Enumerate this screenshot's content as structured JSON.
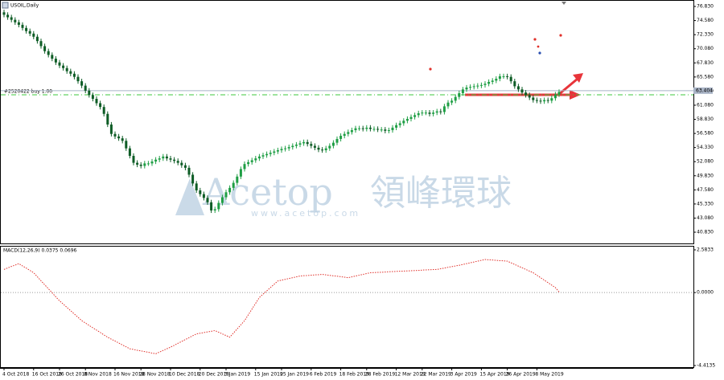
{
  "window_title": "USOIL,Daily",
  "watermark": {
    "brand": "Acetop",
    "name_cn": "領峰環球",
    "url": "www.acetop.com"
  },
  "chart_data": [
    {
      "type": "candlestick",
      "categories": [
        "4 Oct 2018",
        null,
        null,
        null,
        null,
        null,
        null,
        null,
        "16 Oct 2018",
        null,
        null,
        null,
        null,
        null,
        null,
        "26 Oct 2018",
        null,
        null,
        null,
        null,
        null,
        null,
        "8 Nov 2018",
        null,
        null,
        null,
        null,
        null,
        null,
        null,
        "16 Nov 2018",
        null,
        null,
        null,
        null,
        null,
        null,
        "28 Nov 2018",
        null,
        null,
        null,
        null,
        null,
        null,
        null,
        "10 Dec 2018",
        null,
        null,
        null,
        null,
        null,
        null,
        null,
        "20 Dec 2018",
        null,
        null,
        null,
        null,
        null,
        null,
        "3 Jan 2019",
        null,
        null,
        null,
        null,
        null,
        null,
        null,
        "15 Jan 2019",
        null,
        null,
        null,
        null,
        null,
        null,
        "25 Jan 2019",
        null,
        null,
        null,
        null,
        null,
        null,
        null,
        "6 Feb 2019",
        null,
        null,
        null,
        null,
        null,
        null,
        null,
        "18 Feb 2019",
        null,
        null,
        null,
        null,
        null,
        null,
        "28 Feb 2019",
        null,
        null,
        null,
        null,
        null,
        null,
        null,
        "12 Mar 2019",
        null,
        null,
        null,
        null,
        null,
        null,
        "22 Mar 2019",
        null,
        null,
        null,
        null,
        null,
        null,
        null,
        "3 Apr 2019",
        null,
        null,
        null,
        null,
        null,
        null,
        null,
        "15 Apr 2019",
        null,
        null,
        null,
        null,
        null,
        null,
        "26 Apr 2019",
        null,
        null,
        null,
        null,
        null,
        null,
        null,
        "8 May 2019",
        null,
        null,
        null,
        null,
        null,
        null
      ],
      "open": [
        75.9,
        75.5,
        75.1,
        74.7,
        74.3,
        73.9,
        73.4,
        72.9,
        72.5,
        72.0,
        71.3,
        70.5,
        69.7,
        69.1,
        68.5,
        67.9,
        67.4,
        67.0,
        66.5,
        66.1,
        65.6,
        64.9,
        64.2,
        63.4,
        62.7,
        62.1,
        61.4,
        60.8,
        59.7,
        58.0,
        56.5,
        56.1,
        55.8,
        55.4,
        54.2,
        53.0,
        51.9,
        51.6,
        51.4,
        51.8,
        51.8,
        52.1,
        52.4,
        52.6,
        52.9,
        52.6,
        52.4,
        52.2,
        51.9,
        51.5,
        51.1,
        50.0,
        48.6,
        47.5,
        46.9,
        46.3,
        45.6,
        44.3,
        44.5,
        45.5,
        46.4,
        47.2,
        47.9,
        48.7,
        49.7,
        50.9,
        51.7,
        52.0,
        52.3,
        52.6,
        52.9,
        53.1,
        53.3,
        53.5,
        53.7,
        53.9,
        54.1,
        54.2,
        54.4,
        54.6,
        54.8,
        55.0,
        55.2,
        54.9,
        54.6,
        54.3,
        54.0,
        53.9,
        54.2,
        54.6,
        55.1,
        55.7,
        56.2,
        56.5,
        56.8,
        57.1,
        57.4,
        57.4,
        57.3,
        57.5,
        57.3,
        57.3,
        57.2,
        57.2,
        57.0,
        57.1,
        57.5,
        57.9,
        58.2,
        58.6,
        58.9,
        59.2,
        59.5,
        59.8,
        59.9,
        59.9,
        59.7,
        59.9,
        60.1,
        60.0,
        60.9,
        61.5,
        61.8,
        62.4,
        63.0,
        63.6,
        63.9,
        64.0,
        64.1,
        64.2,
        64.3,
        64.5,
        64.8,
        65.0,
        65.3,
        65.7,
        65.7,
        65.6,
        64.9,
        64.1,
        63.6,
        63.1,
        62.7,
        62.3,
        61.9,
        61.8,
        61.7,
        61.9,
        61.8,
        62.2,
        62.8
      ],
      "high": [
        76.3,
        75.9,
        75.5,
        75.1,
        74.7,
        74.3,
        73.8,
        73.3,
        72.9,
        72.4,
        71.7,
        70.9,
        70.1,
        69.5,
        68.9,
        68.3,
        67.8,
        67.4,
        66.9,
        66.5,
        66.0,
        65.3,
        64.6,
        63.8,
        63.1,
        62.5,
        61.8,
        61.2,
        60.1,
        58.4,
        56.9,
        56.5,
        56.2,
        55.8,
        54.6,
        53.4,
        52.3,
        52.0,
        52.2,
        52.2,
        52.5,
        52.8,
        53.0,
        53.3,
        53.3,
        53.0,
        52.8,
        52.6,
        52.3,
        51.9,
        51.5,
        50.4,
        49.0,
        47.9,
        47.3,
        46.7,
        46.0,
        44.9,
        45.9,
        46.8,
        47.6,
        48.3,
        49.1,
        50.1,
        51.3,
        52.1,
        52.4,
        52.7,
        53.0,
        53.3,
        53.5,
        53.7,
        53.9,
        54.1,
        54.3,
        54.5,
        54.6,
        54.8,
        55.0,
        55.2,
        55.4,
        55.6,
        55.6,
        55.3,
        55.0,
        54.7,
        54.4,
        54.6,
        55.0,
        55.5,
        56.1,
        56.6,
        56.9,
        57.2,
        57.5,
        57.8,
        57.8,
        57.8,
        57.9,
        57.9,
        57.7,
        57.7,
        57.6,
        57.6,
        57.5,
        57.9,
        58.3,
        58.6,
        59.0,
        59.3,
        59.6,
        59.9,
        60.2,
        60.3,
        60.3,
        60.3,
        60.3,
        60.5,
        60.5,
        61.3,
        61.9,
        62.2,
        62.8,
        63.4,
        64.0,
        64.3,
        64.4,
        64.5,
        64.6,
        64.7,
        64.9,
        65.2,
        65.4,
        65.7,
        66.1,
        66.1,
        66.1,
        66.0,
        65.3,
        64.5,
        64.0,
        63.5,
        63.1,
        62.7,
        62.3,
        62.2,
        62.3,
        62.3,
        62.6,
        63.2,
        63.6
      ],
      "low": [
        75.1,
        74.7,
        74.3,
        73.9,
        73.5,
        73.0,
        72.5,
        72.1,
        71.6,
        70.9,
        70.1,
        69.3,
        68.7,
        68.1,
        67.5,
        67.0,
        66.6,
        66.1,
        65.7,
        65.2,
        64.5,
        63.8,
        63.0,
        62.3,
        61.7,
        61.0,
        60.4,
        59.3,
        57.6,
        56.1,
        55.7,
        55.4,
        55.0,
        53.8,
        52.6,
        51.5,
        51.2,
        51.0,
        51.0,
        51.4,
        51.4,
        51.7,
        52.0,
        52.2,
        52.2,
        52.0,
        51.8,
        51.5,
        51.1,
        50.7,
        49.6,
        48.2,
        47.1,
        46.5,
        45.9,
        45.2,
        43.9,
        43.9,
        44.1,
        45.1,
        46.0,
        46.8,
        47.5,
        48.3,
        49.3,
        50.5,
        51.3,
        51.6,
        51.9,
        52.2,
        52.5,
        52.7,
        52.9,
        53.1,
        53.3,
        53.5,
        53.7,
        53.8,
        54.0,
        54.2,
        54.4,
        54.6,
        54.5,
        54.2,
        53.9,
        53.6,
        53.5,
        53.5,
        53.8,
        54.2,
        54.7,
        55.3,
        55.8,
        56.1,
        56.4,
        56.7,
        57.0,
        56.9,
        56.9,
        56.9,
        56.9,
        56.8,
        56.8,
        56.6,
        56.6,
        56.7,
        57.1,
        57.5,
        57.8,
        58.2,
        58.5,
        58.8,
        59.1,
        59.4,
        59.5,
        59.3,
        59.3,
        59.5,
        59.6,
        59.6,
        60.5,
        61.1,
        61.4,
        62.0,
        62.6,
        63.2,
        63.5,
        63.6,
        63.7,
        63.8,
        63.9,
        64.1,
        64.4,
        64.6,
        64.9,
        65.3,
        65.2,
        64.5,
        63.7,
        63.2,
        62.7,
        62.3,
        61.9,
        61.5,
        61.4,
        61.3,
        61.3,
        61.4,
        61.4,
        61.8,
        62.4
      ],
      "close": [
        75.5,
        75.1,
        74.7,
        74.3,
        73.9,
        73.4,
        72.9,
        72.5,
        72.0,
        71.3,
        70.5,
        69.7,
        69.1,
        68.5,
        67.9,
        67.4,
        67.0,
        66.5,
        66.1,
        65.6,
        64.9,
        64.2,
        63.4,
        62.7,
        62.1,
        61.4,
        60.8,
        59.7,
        58.0,
        56.5,
        56.1,
        55.8,
        55.4,
        54.2,
        53.0,
        51.9,
        51.6,
        51.4,
        51.8,
        51.8,
        52.1,
        52.4,
        52.6,
        52.9,
        52.6,
        52.4,
        52.2,
        51.9,
        51.5,
        51.1,
        50.0,
        48.6,
        47.5,
        46.9,
        46.3,
        45.6,
        44.3,
        44.5,
        45.5,
        46.4,
        47.2,
        47.9,
        48.7,
        49.7,
        50.9,
        51.7,
        52.0,
        52.3,
        52.6,
        52.9,
        53.1,
        53.3,
        53.5,
        53.7,
        53.9,
        54.1,
        54.2,
        54.4,
        54.6,
        54.8,
        55.0,
        55.2,
        54.9,
        54.6,
        54.3,
        54.0,
        53.9,
        54.2,
        54.6,
        55.1,
        55.7,
        56.2,
        56.5,
        56.8,
        57.1,
        57.4,
        57.4,
        57.3,
        57.5,
        57.3,
        57.3,
        57.2,
        57.2,
        57.0,
        57.1,
        57.5,
        57.9,
        58.2,
        58.6,
        58.9,
        59.2,
        59.5,
        59.8,
        59.9,
        59.9,
        59.7,
        59.9,
        60.1,
        60.0,
        60.9,
        61.5,
        61.8,
        62.4,
        63.0,
        63.6,
        63.9,
        64.0,
        64.1,
        64.2,
        64.3,
        64.5,
        64.8,
        65.0,
        65.3,
        65.7,
        65.7,
        65.6,
        64.9,
        64.1,
        63.6,
        63.1,
        62.7,
        62.3,
        61.9,
        61.8,
        61.7,
        61.9,
        61.8,
        62.2,
        62.8,
        63.2
      ],
      "up_color": "#1e9e44",
      "down_color": "#0d5c25",
      "ylim": [
        39.04,
        77.73
      ],
      "yticks": [
        {
          "value": 76.83,
          "label": "76.830"
        },
        {
          "value": 74.58,
          "label": "74.580"
        },
        {
          "value": 72.33,
          "label": "72.330"
        },
        {
          "value": 70.08,
          "label": "70.080"
        },
        {
          "value": 67.83,
          "label": "67.830"
        },
        {
          "value": 65.58,
          "label": "65.580"
        },
        {
          "value": 63.33,
          "label": "63.330"
        },
        {
          "value": 61.08,
          "label": "61.080"
        },
        {
          "value": 58.83,
          "label": "58.830"
        },
        {
          "value": 56.58,
          "label": "56.580"
        },
        {
          "value": 54.33,
          "label": "54.330"
        },
        {
          "value": 52.08,
          "label": "52.080"
        },
        {
          "value": 49.83,
          "label": "49.830"
        },
        {
          "value": 47.58,
          "label": "47.580"
        },
        {
          "value": 45.33,
          "label": "45.330"
        },
        {
          "value": 43.08,
          "label": "43.080"
        },
        {
          "value": 40.83,
          "label": "40.830"
        }
      ],
      "price_line": 63.404,
      "price_line_color": "#a9b4c6",
      "order": {
        "label": "#2520422 buy 1.00",
        "price": 62.74,
        "color": "#3cc83c"
      }
    },
    {
      "type": "line",
      "title": "MACD(12,26,9) 0.0375 0.0696",
      "color": "#e0302a",
      "values": [
        1.4,
        1.49,
        1.58,
        1.66,
        1.75,
        1.61,
        1.48,
        1.34,
        1.2,
        0.96,
        0.71,
        0.47,
        0.23,
        -0.01,
        -0.26,
        -0.5,
        -0.7,
        -0.9,
        -1.1,
        -1.3,
        -1.5,
        -1.7,
        -1.84,
        -1.99,
        -2.13,
        -2.27,
        -2.41,
        -2.56,
        -2.7,
        -2.82,
        -2.93,
        -3.05,
        -3.17,
        -3.28,
        -3.4,
        -3.44,
        -3.49,
        -3.53,
        -3.57,
        -3.61,
        -3.66,
        -3.7,
        -3.6,
        -3.5,
        -3.4,
        -3.3,
        -3.19,
        -3.07,
        -2.96,
        -2.84,
        -2.73,
        -2.61,
        -2.5,
        -2.46,
        -2.42,
        -2.38,
        -2.34,
        -2.3,
        -2.4,
        -2.5,
        -2.6,
        -2.7,
        -2.45,
        -2.2,
        -1.95,
        -1.7,
        -1.35,
        -1.0,
        -0.65,
        -0.3,
        -0.1,
        0.1,
        0.3,
        0.5,
        0.7,
        0.75,
        0.8,
        0.85,
        0.9,
        0.95,
        1.0,
        1.02,
        1.03,
        1.05,
        1.07,
        1.08,
        1.1,
        1.07,
        1.04,
        1.01,
        0.99,
        0.96,
        0.93,
        0.9,
        0.95,
        1.0,
        1.05,
        1.1,
        1.15,
        1.2,
        1.21,
        1.22,
        1.23,
        1.24,
        1.26,
        1.27,
        1.28,
        1.29,
        1.3,
        1.31,
        1.32,
        1.33,
        1.34,
        1.36,
        1.37,
        1.38,
        1.39,
        1.4,
        1.44,
        1.48,
        1.53,
        1.57,
        1.61,
        1.65,
        1.7,
        1.75,
        1.8,
        1.85,
        1.9,
        1.95,
        2.0,
        1.98,
        1.97,
        1.95,
        1.93,
        1.92,
        1.9,
        1.8,
        1.7,
        1.6,
        1.5,
        1.4,
        1.3,
        1.2,
        1.05,
        0.9,
        0.75,
        0.6,
        0.45,
        0.3,
        0.04
      ],
      "ylim": [
        -4.4135,
        2.5833
      ],
      "yticks": [
        2.5833,
        {
          "value": 0,
          "label": "0.0000"
        },
        -4.4135
      ],
      "zero_line": true
    }
  ]
}
